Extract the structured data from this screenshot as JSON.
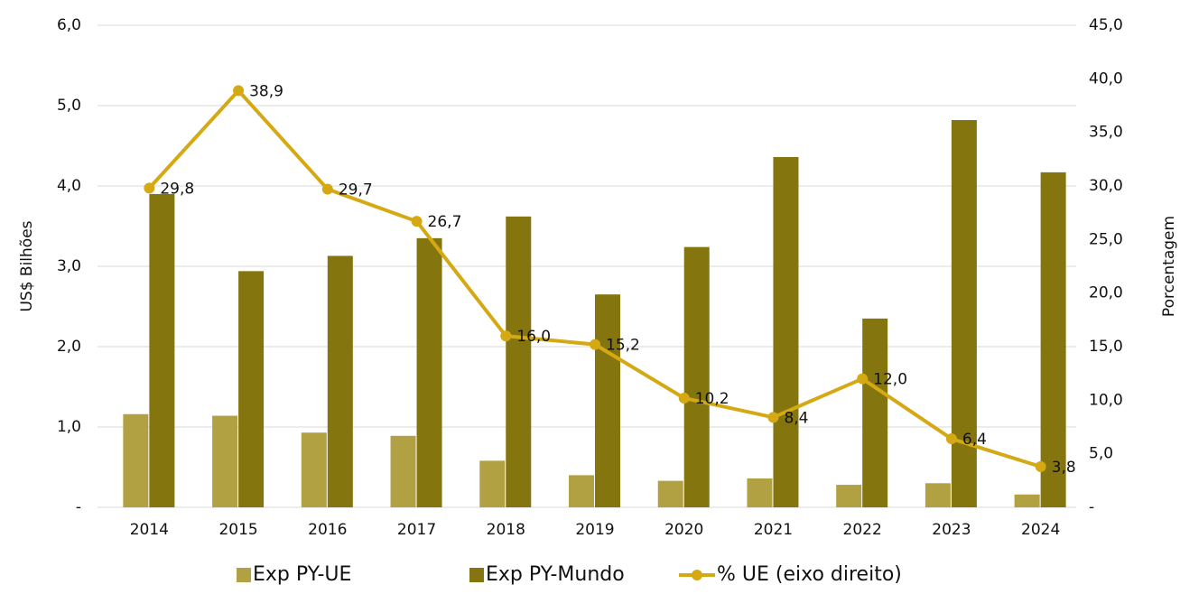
{
  "chart_data": {
    "type": "bar_line",
    "categories": [
      "2014",
      "2015",
      "2016",
      "2017",
      "2018",
      "2019",
      "2020",
      "2021",
      "2022",
      "2023",
      "2024"
    ],
    "series": [
      {
        "name": "Exp PY-UE",
        "type": "bar",
        "color": "#b1a142",
        "values": [
          1.16,
          1.14,
          0.93,
          0.89,
          0.58,
          0.4,
          0.33,
          0.36,
          0.28,
          0.3,
          0.16
        ]
      },
      {
        "name": "Exp PY-Mundo",
        "type": "bar",
        "color": "#85750f",
        "values": [
          3.9,
          2.94,
          3.13,
          3.35,
          3.62,
          2.65,
          3.24,
          4.36,
          2.35,
          4.82,
          4.17
        ]
      },
      {
        "name": "% UE (eixo direito)",
        "type": "line",
        "axis": "y2",
        "color": "#d4a914",
        "values": [
          29.8,
          38.9,
          29.7,
          26.7,
          16.0,
          15.2,
          10.2,
          8.4,
          12.0,
          6.4,
          3.8
        ],
        "value_labels": [
          "29,8",
          "38,9",
          "29,7",
          "26,7",
          "16,0",
          "15,2",
          "10,2",
          "8,4",
          "12,0",
          "6,4",
          "3,8"
        ]
      }
    ],
    "ylabel": "US$ Bilhões",
    "y2label": "Porcentagem",
    "ylim": [
      0,
      6
    ],
    "yticks": [
      {
        "value": 0,
        "label": "-"
      },
      {
        "value": 1,
        "label": "1,0"
      },
      {
        "value": 2,
        "label": "2,0"
      },
      {
        "value": 3,
        "label": "3,0"
      },
      {
        "value": 4,
        "label": "4,0"
      },
      {
        "value": 5,
        "label": "5,0"
      },
      {
        "value": 6,
        "label": "6,0"
      }
    ],
    "y2lim": [
      0,
      45
    ],
    "y2ticks": [
      {
        "value": 0,
        "label": "-"
      },
      {
        "value": 5,
        "label": "5,0"
      },
      {
        "value": 10,
        "label": "10,0"
      },
      {
        "value": 15,
        "label": "15,0"
      },
      {
        "value": 20,
        "label": "20,0"
      },
      {
        "value": 25,
        "label": "25,0"
      },
      {
        "value": 30,
        "label": "30,0"
      },
      {
        "value": 35,
        "label": "35,0"
      },
      {
        "value": 40,
        "label": "40,0"
      },
      {
        "value": 45,
        "label": "45,0"
      }
    ],
    "grid": true,
    "legend": "bottom"
  }
}
